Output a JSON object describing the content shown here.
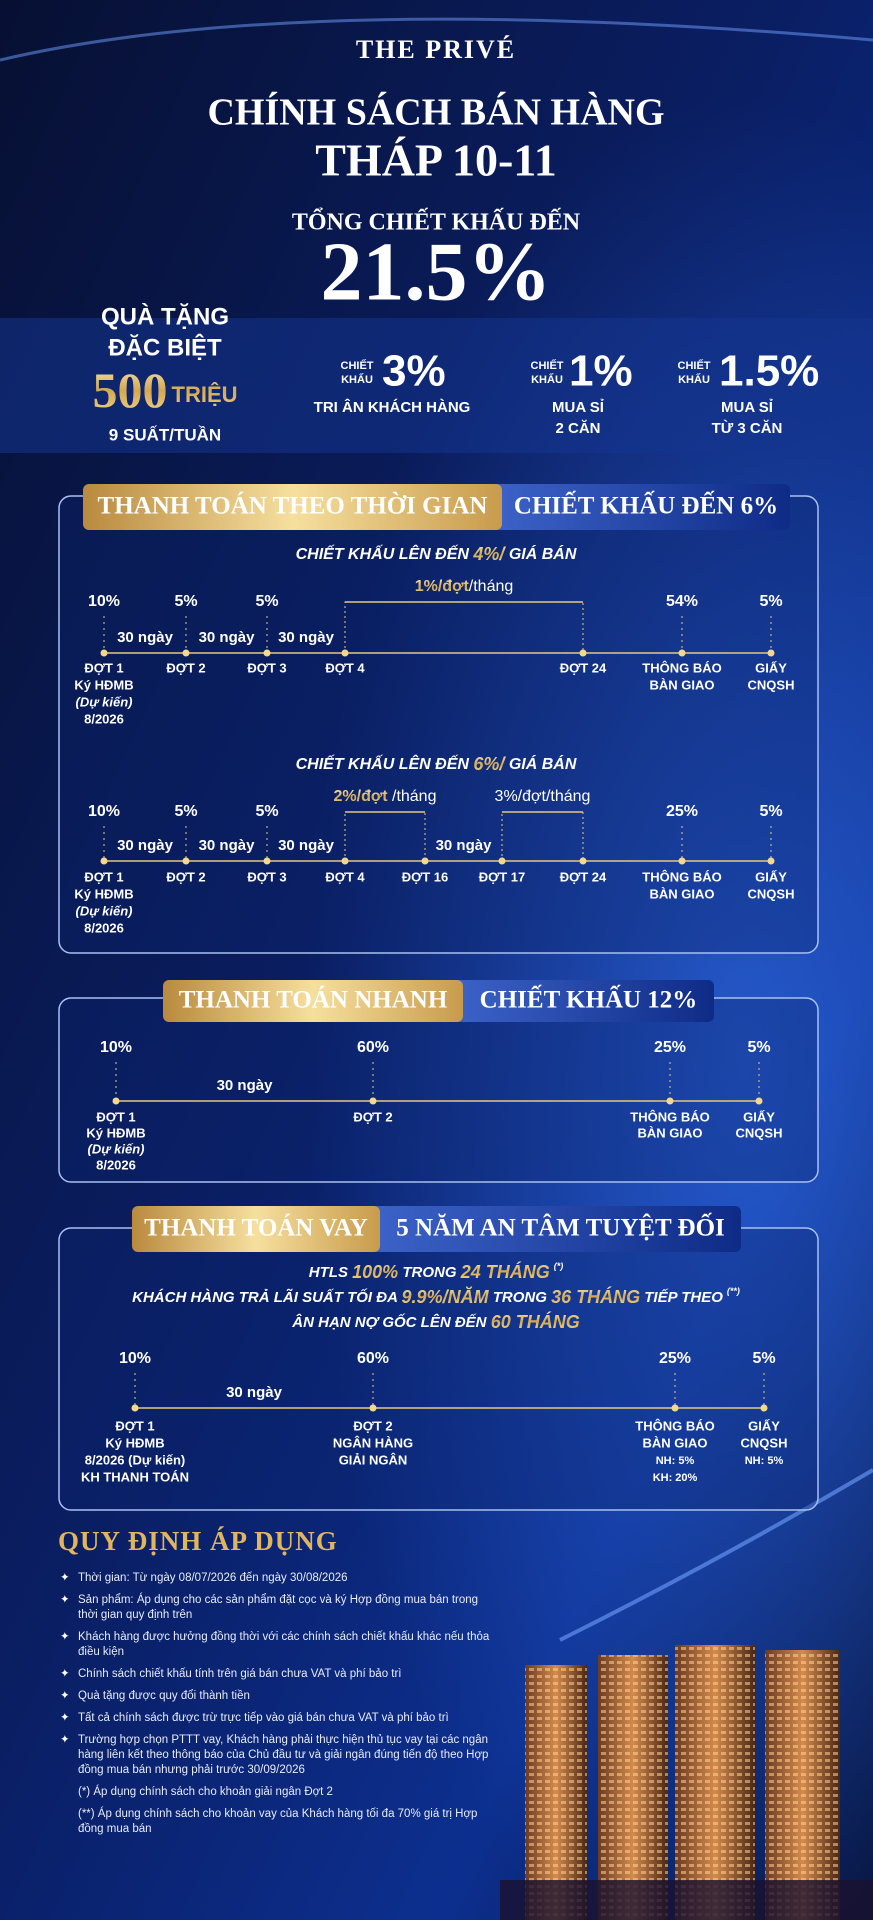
{
  "header": {
    "brand": "THE PRIVÉ",
    "title": "CHÍNH SÁCH BÁN HÀNG",
    "subtitle": "THÁP 10-11",
    "discount_label": "TỔNG CHIẾT KHẤU ĐẾN",
    "discount_value": "21.5%"
  },
  "gift": {
    "line1": "QUÀ TẶNG",
    "line2": "ĐẶC BIỆT",
    "amount": "500",
    "unit": "TRIỆU",
    "quota": "9 SUẤT/TUẦN"
  },
  "discounts": [
    {
      "label": [
        "CHIẾT",
        "KHẤU"
      ],
      "value": "3%",
      "desc": [
        "TRI ÂN KHÁCH HÀNG"
      ]
    },
    {
      "label": [
        "CHIẾT",
        "KHẤU"
      ],
      "value": "1%",
      "desc": [
        "MUA SỈ",
        "2 CĂN"
      ]
    },
    {
      "label": [
        "CHIẾT",
        "KHẤU"
      ],
      "value": "1.5%",
      "desc": [
        "MUA SỈ",
        "TỪ 3 CĂN"
      ]
    }
  ],
  "time_payment": {
    "title": "THANH TOÁN THEO THỜI GIAN",
    "badge": "CHIẾT KHẤU ĐẾN 6%",
    "plans": [
      {
        "heading": [
          "CHIẾT KHẤU LÊN ĐẾN ",
          "4%/",
          " GIÁ BÁN"
        ],
        "stages": [
          {
            "percent": "10%",
            "label": [
              "ĐỢT 1",
              "Ký HĐMB",
              "(Dự kiến)",
              "8/2026"
            ]
          },
          {
            "percent": "5%",
            "label": [
              "ĐỢT 2"
            ]
          },
          {
            "percent": "5%",
            "label": [
              "ĐỢT 3"
            ]
          },
          {
            "percent": null,
            "label": [
              "ĐỢT 4"
            ]
          },
          {
            "percent": null,
            "label": [
              "ĐỢT 24"
            ]
          },
          {
            "percent": "54%",
            "label": [
              "THÔNG BÁO",
              "BÀN GIAO"
            ]
          },
          {
            "percent": "5%",
            "label": [
              "GIẤY",
              "CNQSH"
            ]
          }
        ],
        "gaps": [
          "30 ngày",
          "30 ngày",
          "30 ngày"
        ],
        "spans": [
          {
            "highlight": "1%/đợt",
            "text": "/tháng"
          }
        ]
      },
      {
        "heading": [
          "CHIẾT KHẤU LÊN ĐẾN ",
          "6%/",
          " GIÁ BÁN"
        ],
        "stages": [
          {
            "percent": "10%",
            "label": [
              "ĐỢT 1",
              "Ký HĐMB",
              "(Dự kiến)",
              "8/2026"
            ]
          },
          {
            "percent": "5%",
            "label": [
              "ĐỢT 2"
            ]
          },
          {
            "percent": "5%",
            "label": [
              "ĐỢT 3"
            ]
          },
          {
            "percent": null,
            "label": [
              "ĐỢT 4"
            ]
          },
          {
            "percent": null,
            "label": [
              "ĐỢT 16"
            ]
          },
          {
            "percent": null,
            "label": [
              "ĐỢT 17"
            ]
          },
          {
            "percent": null,
            "label": [
              "ĐỢT 24"
            ]
          },
          {
            "percent": "25%",
            "label": [
              "THÔNG BÁO",
              "BÀN GIAO"
            ]
          },
          {
            "percent": "5%",
            "label": [
              "GIẤY",
              "CNQSH"
            ]
          }
        ],
        "gaps": [
          "30 ngày",
          "30 ngày",
          "30 ngày",
          "30 ngày"
        ],
        "spans": [
          {
            "highlight": "2%/đợt",
            "text": " /tháng"
          },
          {
            "text": "3%/đợt/tháng"
          }
        ]
      }
    ]
  },
  "fast_payment": {
    "title": "THANH TOÁN NHANH",
    "badge": "CHIẾT KHẤU 12%",
    "stages": [
      {
        "percent": "10%",
        "label": [
          "ĐỢT 1",
          "Ký HĐMB",
          "(Dự kiến)",
          "8/2026"
        ]
      },
      {
        "percent": "60%",
        "label": [
          "ĐỢT 2"
        ]
      },
      {
        "percent": "25%",
        "label": [
          "THÔNG BÁO",
          "BÀN GIAO"
        ]
      },
      {
        "percent": "5%",
        "label": [
          "GIẤY",
          "CNQSH"
        ]
      }
    ],
    "gaps": [
      "30 ngày"
    ]
  },
  "loan_payment": {
    "title": "THANH TOÁN VAY",
    "badge": "5 NĂM AN TÂM TUYỆT ĐỐI",
    "lines": [
      {
        "parts": [
          "HTLS ",
          "100%",
          " TRONG ",
          "24 THÁNG"
        ],
        "note": "(*)"
      },
      {
        "parts": [
          "KHÁCH HÀNG TRẢ LÃI SUẤT TỐI ĐA ",
          "9.9%/NĂM",
          " TRONG ",
          "36 THÁNG",
          " TIẾP THEO"
        ],
        "note": "(**)"
      },
      {
        "parts": [
          "ÂN HẠN NỢ GỐC LÊN ĐẾN ",
          "60 THÁNG"
        ]
      }
    ],
    "stages": [
      {
        "percent": "10%",
        "label": [
          "ĐỢT 1",
          "Ký HĐMB",
          "8/2026 (Dự kiến)",
          "KH THANH TOÁN"
        ]
      },
      {
        "percent": "60%",
        "label": [
          "ĐỢT 2",
          "NGÂN HÀNG",
          "GIẢI NGÂN"
        ]
      },
      {
        "percent": "25%",
        "label": [
          "THÔNG BÁO",
          "BÀN GIAO",
          "NH: 5%",
          "KH: 20%"
        ]
      },
      {
        "percent": "5%",
        "label": [
          "GIẤY",
          "CNQSH",
          "NH: 5%"
        ]
      }
    ],
    "gaps": [
      "30 ngày"
    ]
  },
  "rules": {
    "title": "QUY ĐỊNH ÁP DỤNG",
    "items": [
      "Thời gian: Từ ngày 08/07/2026 đến ngày 30/08/2026",
      "Sản phẩm: Áp dụng cho các sản phẩm đặt cọc và ký Hợp đồng mua bán trong thời gian quy định trên",
      "Khách hàng được hưởng đồng thời với các chính sách chiết khấu khác nếu thỏa điều kiện",
      "Chính sách chiết khấu tính trên giá bán chưa VAT và phí bảo trì",
      "Quà tặng được quy đổi thành tiền",
      "Tất cả chính sách được trừ trực tiếp vào giá bán chưa VAT và phí bảo trì",
      "Trường hợp chọn PTTT vay, Khách hàng phải thực hiện thủ tục vay tại các ngân hàng liên kết theo thông báo của Chủ đầu tư và giải ngân đúng tiến độ theo Hợp đồng mua bán nhưng phải trước 30/09/2026"
    ],
    "notes": [
      "(*) Áp dụng chính sách cho khoản giải ngân Đợt 2",
      "(**) Áp dụng chính sách cho khoản vay của Khách hàng tối đa 70% giá trị Hợp đồng mua bán"
    ]
  }
}
